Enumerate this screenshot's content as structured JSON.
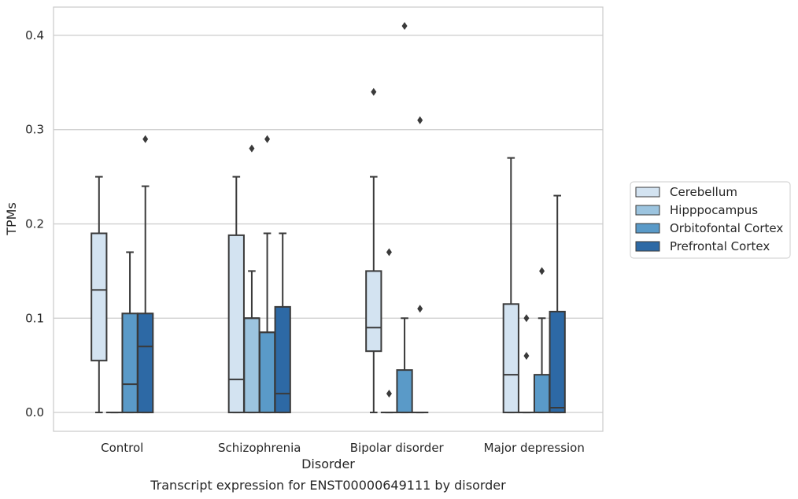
{
  "chart_data": {
    "type": "box",
    "xlabel": "Disorder",
    "ylabel": "TPMs",
    "caption": "Transcript expression for ENST00000649111 by disorder",
    "ylim": [
      -0.02,
      0.43
    ],
    "yticks": [
      "0.0",
      "0.1",
      "0.2",
      "0.3",
      "0.4"
    ],
    "ytick_values": [
      0.0,
      0.1,
      0.2,
      0.3,
      0.4
    ],
    "grid": "horizontal",
    "legend_position": "right",
    "categories": [
      "Control",
      "Schizophrenia",
      "Bipolar disorder",
      "Major depression"
    ],
    "series": [
      {
        "name": "Cerebellum",
        "color": "#d3e3f1",
        "boxes": [
          {
            "category": "Control",
            "whisker_low": 0.0,
            "q1": 0.055,
            "median": 0.13,
            "q3": 0.19,
            "whisker_high": 0.25,
            "outliers": []
          },
          {
            "category": "Schizophrenia",
            "whisker_low": 0.0,
            "q1": 0.0,
            "median": 0.035,
            "q3": 0.188,
            "whisker_high": 0.25,
            "outliers": []
          },
          {
            "category": "Bipolar disorder",
            "whisker_low": 0.0,
            "q1": 0.065,
            "median": 0.09,
            "q3": 0.15,
            "whisker_high": 0.25,
            "outliers": [
              0.34
            ]
          },
          {
            "category": "Major depression",
            "whisker_low": 0.0,
            "q1": 0.0,
            "median": 0.04,
            "q3": 0.115,
            "whisker_high": 0.27,
            "outliers": []
          }
        ]
      },
      {
        "name": "Hipppocampus",
        "color": "#9cc4df",
        "boxes": [
          {
            "category": "Control",
            "whisker_low": 0.0,
            "q1": 0.0,
            "median": 0.0,
            "q3": 0.0,
            "whisker_high": 0.0,
            "outliers": []
          },
          {
            "category": "Schizophrenia",
            "whisker_low": 0.0,
            "q1": 0.0,
            "median": 0.1,
            "q3": 0.1,
            "whisker_high": 0.15,
            "outliers": [
              0.28
            ]
          },
          {
            "category": "Bipolar disorder",
            "whisker_low": 0.0,
            "q1": 0.0,
            "median": 0.0,
            "q3": 0.0,
            "whisker_high": 0.0,
            "outliers": [
              0.02,
              0.17
            ]
          },
          {
            "category": "Major depression",
            "whisker_low": 0.0,
            "q1": 0.0,
            "median": 0.0,
            "q3": 0.0,
            "whisker_high": 0.0,
            "outliers": [
              0.06,
              0.1
            ]
          }
        ]
      },
      {
        "name": "Orbitofontal Cortex",
        "color": "#5a9ac8",
        "boxes": [
          {
            "category": "Control",
            "whisker_low": 0.0,
            "q1": 0.0,
            "median": 0.03,
            "q3": 0.105,
            "whisker_high": 0.17,
            "outliers": []
          },
          {
            "category": "Schizophrenia",
            "whisker_low": 0.0,
            "q1": 0.0,
            "median": 0.085,
            "q3": 0.085,
            "whisker_high": 0.19,
            "outliers": [
              0.29
            ]
          },
          {
            "category": "Bipolar disorder",
            "whisker_low": 0.0,
            "q1": 0.0,
            "median": 0.0,
            "q3": 0.045,
            "whisker_high": 0.1,
            "outliers": [
              0.41
            ]
          },
          {
            "category": "Major depression",
            "whisker_low": 0.0,
            "q1": 0.0,
            "median": 0.0,
            "q3": 0.04,
            "whisker_high": 0.1,
            "outliers": [
              0.15
            ]
          }
        ]
      },
      {
        "name": "Prefrontal Cortex",
        "color": "#2d69a5",
        "boxes": [
          {
            "category": "Control",
            "whisker_low": 0.0,
            "q1": 0.0,
            "median": 0.07,
            "q3": 0.105,
            "whisker_high": 0.24,
            "outliers": [
              0.29
            ]
          },
          {
            "category": "Schizophrenia",
            "whisker_low": 0.0,
            "q1": 0.0,
            "median": 0.02,
            "q3": 0.112,
            "whisker_high": 0.19,
            "outliers": []
          },
          {
            "category": "Bipolar disorder",
            "whisker_low": 0.0,
            "q1": 0.0,
            "median": 0.0,
            "q3": 0.0,
            "whisker_high": 0.0,
            "outliers": [
              0.11,
              0.31
            ]
          },
          {
            "category": "Major depression",
            "whisker_low": 0.0,
            "q1": 0.0,
            "median": 0.005,
            "q3": 0.107,
            "whisker_high": 0.23,
            "outliers": []
          }
        ]
      }
    ]
  }
}
